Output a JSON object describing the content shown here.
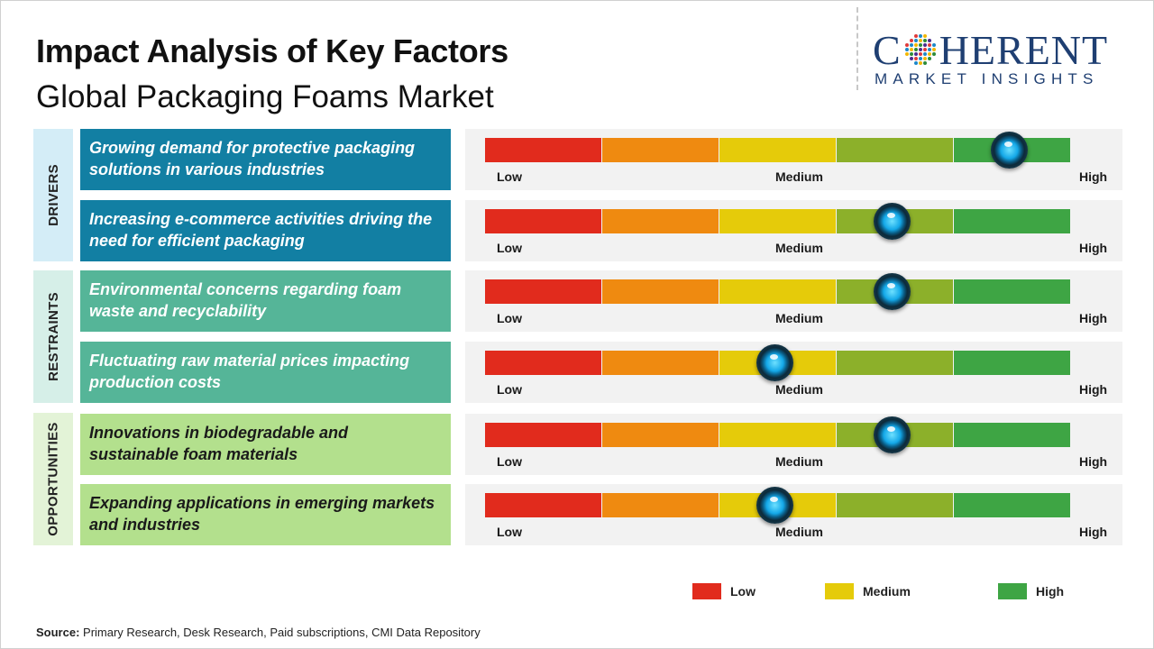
{
  "title": "Impact Analysis of Key Factors",
  "subtitle": "Global Packaging Foams Market",
  "logo": {
    "brand_letters": [
      "C",
      "HERENT"
    ],
    "tagline": "MARKET INSIGHTS",
    "colors": {
      "text": "#1f3f72",
      "dots": [
        "#2e8b3a",
        "#4a2c8f",
        "#e03a3a",
        "#1e88c9",
        "#f2b705"
      ]
    }
  },
  "categories": [
    {
      "label": "DRIVERS",
      "color": "#d4edf7"
    },
    {
      "label": "RESTRAINTS",
      "color": "#d6efe8"
    },
    {
      "label": "OPPORTUNITIES",
      "color": "#e3f3d7"
    }
  ],
  "scale_labels": {
    "low": "Low",
    "medium": "Medium",
    "high": "High"
  },
  "scale_colors": [
    "#e12b1d",
    "#ef8a10",
    "#e5cb0a",
    "#8cb02a",
    "#3ea544"
  ],
  "chart_data": {
    "type": "table",
    "scale_levels": 5,
    "rows": [
      {
        "category": "DRIVERS",
        "factor": "Growing demand for protective packaging solutions in various industries",
        "impact_level": 4.5
      },
      {
        "category": "DRIVERS",
        "factor": "Increasing e-commerce activities driving the need for efficient packaging",
        "impact_level": 3.5
      },
      {
        "category": "RESTRAINTS",
        "factor": "Environmental concerns regarding foam waste and recyclability",
        "impact_level": 3.5
      },
      {
        "category": "RESTRAINTS",
        "factor": "Fluctuating raw material prices impacting production costs",
        "impact_level": 2.5
      },
      {
        "category": "OPPORTUNITIES",
        "factor": "Innovations in biodegradable and sustainable foam materials",
        "impact_level": 3.5
      },
      {
        "category": "OPPORTUNITIES",
        "factor": "Expanding applications in emerging markets and industries",
        "impact_level": 2.5
      }
    ]
  },
  "legend": [
    {
      "label": "Low",
      "color": "#e12b1d"
    },
    {
      "label": "Medium",
      "color": "#e5cb0a"
    },
    {
      "label": "High",
      "color": "#3ea544"
    }
  ],
  "source": {
    "label": "Source:",
    "text": "Primary Research, Desk Research, Paid subscriptions, CMI Data Repository"
  }
}
